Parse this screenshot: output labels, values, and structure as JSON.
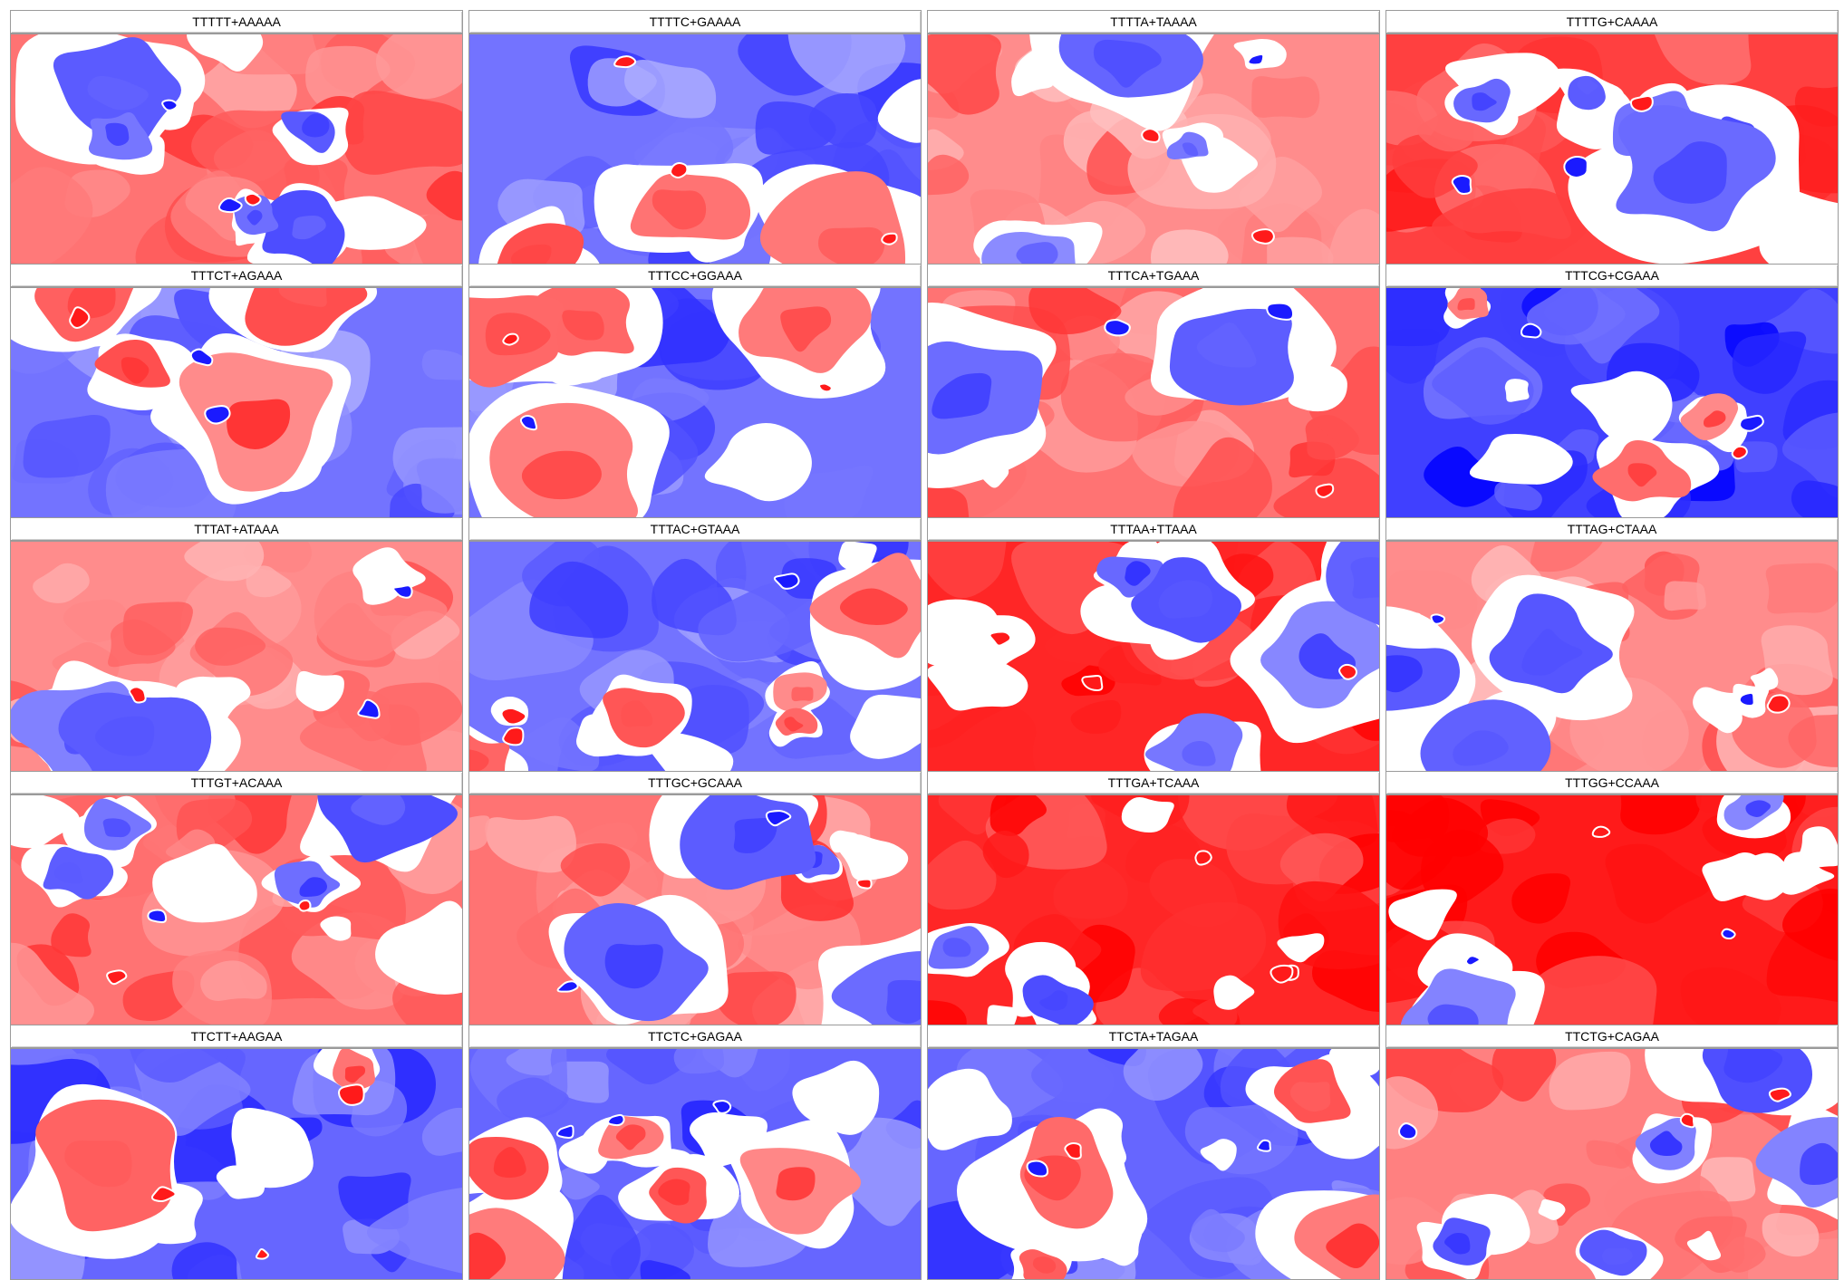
{
  "palette": {
    "red": "#ff0000",
    "blue": "#0000ff",
    "white": "#ffffff",
    "border": "#9a9a9a"
  },
  "panels": [
    {
      "label": "TTTTT+AAAAA",
      "base": "red",
      "level": 0.55,
      "pattern": 0
    },
    {
      "label": "TTTTC+GAAAA",
      "base": "blue",
      "level": 0.55,
      "pattern": 1
    },
    {
      "label": "TTTTA+TAAAA",
      "base": "red",
      "level": 0.45,
      "pattern": 2
    },
    {
      "label": "TTTTG+CAAAA",
      "base": "red",
      "level": 0.75,
      "pattern": 3
    },
    {
      "label": "TTTCT+AGAAA",
      "base": "blue",
      "level": 0.55,
      "pattern": 4
    },
    {
      "label": "TTTCC+GGAAA",
      "base": "blue",
      "level": 0.55,
      "pattern": 5
    },
    {
      "label": "TTTCA+TGAAA",
      "base": "red",
      "level": 0.55,
      "pattern": 6
    },
    {
      "label": "TTTCG+CGAAA",
      "base": "blue",
      "level": 0.75,
      "pattern": 7
    },
    {
      "label": "TTTAT+ATAAA",
      "base": "red",
      "level": 0.45,
      "pattern": 8
    },
    {
      "label": "TTTAC+GTAAA",
      "base": "blue",
      "level": 0.55,
      "pattern": 9
    },
    {
      "label": "TTTAA+TTAAA",
      "base": "red",
      "level": 0.85,
      "pattern": 10
    },
    {
      "label": "TTTAG+CTAAA",
      "base": "red",
      "level": 0.45,
      "pattern": 11
    },
    {
      "label": "TTTGT+ACAAA",
      "base": "red",
      "level": 0.55,
      "pattern": 12
    },
    {
      "label": "TTTGC+GCAAA",
      "base": "red",
      "level": 0.55,
      "pattern": 13
    },
    {
      "label": "TTTGA+TCAAA",
      "base": "red",
      "level": 0.85,
      "pattern": 14
    },
    {
      "label": "TTTGG+CCAAA",
      "base": "red",
      "level": 0.9,
      "pattern": 15
    },
    {
      "label": "TTCTT+AAGAA",
      "base": "blue",
      "level": 0.6,
      "pattern": 16
    },
    {
      "label": "TTCTC+GAGAA",
      "base": "blue",
      "level": 0.6,
      "pattern": 17
    },
    {
      "label": "TTCTA+TAGAA",
      "base": "blue",
      "level": 0.6,
      "pattern": 18
    },
    {
      "label": "TTCTG+CAGAA",
      "base": "red",
      "level": 0.5,
      "pattern": 19
    }
  ]
}
